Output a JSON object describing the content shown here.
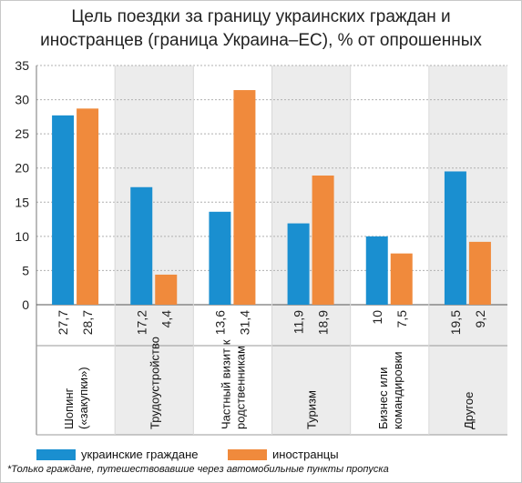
{
  "title_line1": "Цель поездки за границу украинских граждан и",
  "title_line2": "иностранцев (граница Украина–ЕС), % от опрошенных",
  "footnote": "*Только граждане, путешествовавшие через автомобильные пункты пропуска",
  "colors": {
    "series1": "#1a8fd0",
    "series2": "#f08a3c",
    "band": "#ececec",
    "grid": "#b0b0b0"
  },
  "chart_data": {
    "type": "bar",
    "title": "Цель поездки за границу украинских граждан и иностранцев (граница Украина–ЕС), % от опрошенных",
    "categories": [
      [
        "Шопинг",
        "(«закупки»)"
      ],
      [
        "Трудоустройство"
      ],
      [
        "Частный визит к",
        "родственникам"
      ],
      [
        "Туризм"
      ],
      [
        "Бизнес или",
        "командировки"
      ],
      [
        "Другое"
      ]
    ],
    "series": [
      {
        "name": "украинские граждане",
        "values": [
          27.7,
          17.2,
          13.6,
          11.9,
          10,
          19.5
        ],
        "labels": [
          "27,7",
          "17,2",
          "13,6",
          "11,9",
          "10",
          "19,5"
        ]
      },
      {
        "name": "иностранцы",
        "values": [
          28.7,
          4.4,
          31.4,
          18.9,
          7.5,
          9.2
        ],
        "labels": [
          "28,7",
          "4,4",
          "31,4",
          "18,9",
          "7,5",
          "9,2"
        ]
      }
    ],
    "yticks": [
      0,
      5,
      10,
      15,
      20,
      25,
      30,
      35
    ],
    "ylim": [
      0,
      35
    ],
    "grid": true,
    "legend": "bottom-left"
  }
}
